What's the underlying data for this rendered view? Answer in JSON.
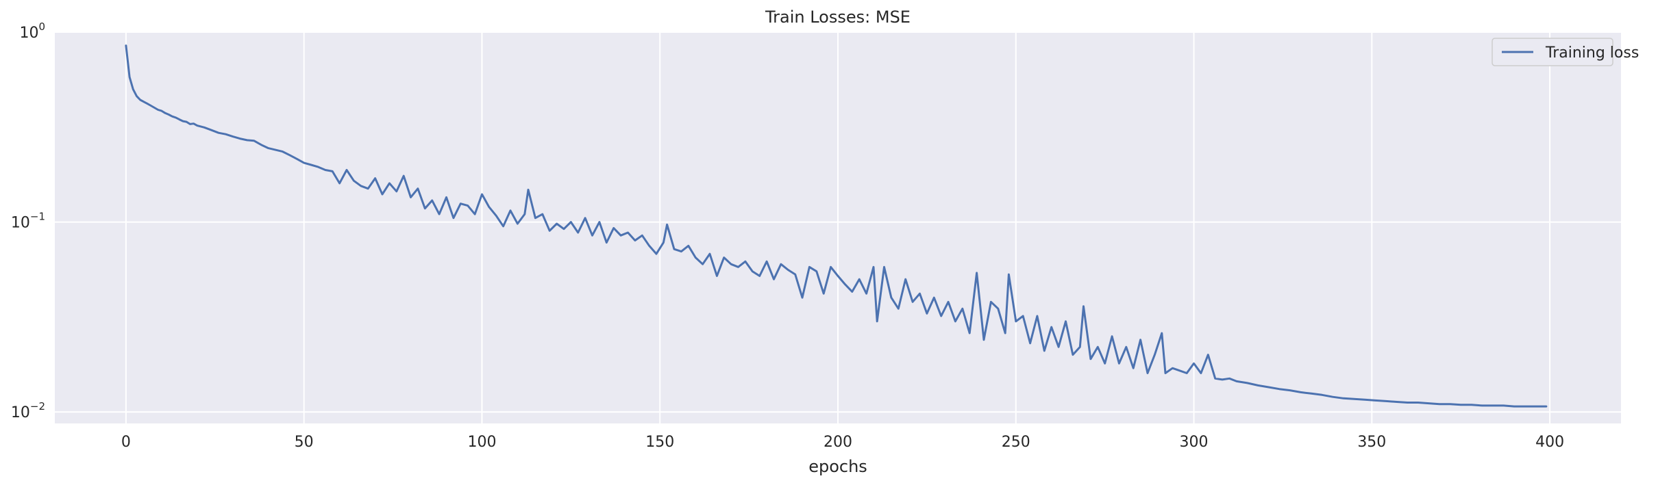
{
  "chart_data": {
    "type": "line",
    "title": "Train Losses:  MSE",
    "xlabel": "epochs",
    "ylabel": "",
    "yscale": "log",
    "xlim": [
      -20,
      420
    ],
    "ylim": [
      0.0087,
      1.0
    ],
    "xticks": [
      0,
      50,
      100,
      150,
      200,
      250,
      300,
      350,
      400
    ],
    "yticks": [
      {
        "value": 1.0,
        "base": "10",
        "exp": "0"
      },
      {
        "value": 0.1,
        "base": "10",
        "exp": "−1"
      },
      {
        "value": 0.01,
        "base": "10",
        "exp": "−2"
      }
    ],
    "grid": true,
    "legend": "top-right",
    "series": [
      {
        "name": "Training loss",
        "color": "#4c72b0",
        "points": [
          [
            0,
            0.85
          ],
          [
            1,
            0.58
          ],
          [
            2,
            0.5
          ],
          [
            3,
            0.46
          ],
          [
            4,
            0.44
          ],
          [
            5,
            0.43
          ],
          [
            6,
            0.42
          ],
          [
            7,
            0.41
          ],
          [
            8,
            0.4
          ],
          [
            9,
            0.39
          ],
          [
            10,
            0.385
          ],
          [
            11,
            0.375
          ],
          [
            12,
            0.368
          ],
          [
            13,
            0.36
          ],
          [
            14,
            0.355
          ],
          [
            15,
            0.347
          ],
          [
            16,
            0.34
          ],
          [
            17,
            0.337
          ],
          [
            18,
            0.328
          ],
          [
            19,
            0.33
          ],
          [
            20,
            0.322
          ],
          [
            22,
            0.315
          ],
          [
            24,
            0.305
          ],
          [
            26,
            0.295
          ],
          [
            28,
            0.29
          ],
          [
            30,
            0.282
          ],
          [
            32,
            0.275
          ],
          [
            34,
            0.27
          ],
          [
            36,
            0.268
          ],
          [
            38,
            0.255
          ],
          [
            40,
            0.245
          ],
          [
            42,
            0.24
          ],
          [
            44,
            0.235
          ],
          [
            46,
            0.225
          ],
          [
            48,
            0.215
          ],
          [
            50,
            0.205
          ],
          [
            52,
            0.2
          ],
          [
            54,
            0.195
          ],
          [
            56,
            0.188
          ],
          [
            58,
            0.185
          ],
          [
            60,
            0.16
          ],
          [
            62,
            0.188
          ],
          [
            64,
            0.165
          ],
          [
            66,
            0.155
          ],
          [
            68,
            0.15
          ],
          [
            70,
            0.17
          ],
          [
            72,
            0.14
          ],
          [
            74,
            0.16
          ],
          [
            76,
            0.145
          ],
          [
            78,
            0.175
          ],
          [
            80,
            0.135
          ],
          [
            82,
            0.15
          ],
          [
            84,
            0.118
          ],
          [
            86,
            0.13
          ],
          [
            88,
            0.11
          ],
          [
            90,
            0.135
          ],
          [
            92,
            0.105
          ],
          [
            94,
            0.125
          ],
          [
            96,
            0.122
          ],
          [
            98,
            0.11
          ],
          [
            100,
            0.14
          ],
          [
            102,
            0.12
          ],
          [
            104,
            0.108
          ],
          [
            106,
            0.095
          ],
          [
            108,
            0.115
          ],
          [
            110,
            0.098
          ],
          [
            112,
            0.11
          ],
          [
            113,
            0.148
          ],
          [
            115,
            0.105
          ],
          [
            117,
            0.11
          ],
          [
            119,
            0.09
          ],
          [
            121,
            0.098
          ],
          [
            123,
            0.092
          ],
          [
            125,
            0.1
          ],
          [
            127,
            0.088
          ],
          [
            129,
            0.105
          ],
          [
            131,
            0.085
          ],
          [
            133,
            0.1
          ],
          [
            135,
            0.078
          ],
          [
            137,
            0.093
          ],
          [
            139,
            0.085
          ],
          [
            141,
            0.088
          ],
          [
            143,
            0.08
          ],
          [
            145,
            0.085
          ],
          [
            147,
            0.075
          ],
          [
            149,
            0.068
          ],
          [
            151,
            0.078
          ],
          [
            152,
            0.097
          ],
          [
            154,
            0.072
          ],
          [
            156,
            0.07
          ],
          [
            158,
            0.075
          ],
          [
            160,
            0.065
          ],
          [
            162,
            0.06
          ],
          [
            164,
            0.068
          ],
          [
            166,
            0.052
          ],
          [
            168,
            0.065
          ],
          [
            170,
            0.06
          ],
          [
            172,
            0.058
          ],
          [
            174,
            0.062
          ],
          [
            176,
            0.055
          ],
          [
            178,
            0.052
          ],
          [
            180,
            0.062
          ],
          [
            182,
            0.05
          ],
          [
            184,
            0.06
          ],
          [
            186,
            0.056
          ],
          [
            188,
            0.053
          ],
          [
            190,
            0.04
          ],
          [
            192,
            0.058
          ],
          [
            194,
            0.055
          ],
          [
            196,
            0.042
          ],
          [
            198,
            0.058
          ],
          [
            200,
            0.052
          ],
          [
            202,
            0.047
          ],
          [
            204,
            0.043
          ],
          [
            206,
            0.05
          ],
          [
            208,
            0.042
          ],
          [
            210,
            0.058
          ],
          [
            211,
            0.03
          ],
          [
            213,
            0.058
          ],
          [
            215,
            0.04
          ],
          [
            217,
            0.035
          ],
          [
            219,
            0.05
          ],
          [
            221,
            0.038
          ],
          [
            223,
            0.042
          ],
          [
            225,
            0.033
          ],
          [
            227,
            0.04
          ],
          [
            229,
            0.032
          ],
          [
            231,
            0.038
          ],
          [
            233,
            0.03
          ],
          [
            235,
            0.035
          ],
          [
            237,
            0.026
          ],
          [
            239,
            0.054
          ],
          [
            241,
            0.024
          ],
          [
            243,
            0.038
          ],
          [
            245,
            0.035
          ],
          [
            247,
            0.026
          ],
          [
            248,
            0.053
          ],
          [
            250,
            0.03
          ],
          [
            252,
            0.032
          ],
          [
            254,
            0.023
          ],
          [
            256,
            0.032
          ],
          [
            258,
            0.021
          ],
          [
            260,
            0.028
          ],
          [
            262,
            0.022
          ],
          [
            264,
            0.03
          ],
          [
            266,
            0.02
          ],
          [
            268,
            0.022
          ],
          [
            269,
            0.036
          ],
          [
            271,
            0.019
          ],
          [
            273,
            0.022
          ],
          [
            275,
            0.018
          ],
          [
            277,
            0.025
          ],
          [
            279,
            0.018
          ],
          [
            281,
            0.022
          ],
          [
            283,
            0.017
          ],
          [
            285,
            0.024
          ],
          [
            287,
            0.016
          ],
          [
            289,
            0.02
          ],
          [
            291,
            0.026
          ],
          [
            292,
            0.016
          ],
          [
            294,
            0.017
          ],
          [
            296,
            0.0165
          ],
          [
            298,
            0.016
          ],
          [
            300,
            0.018
          ],
          [
            302,
            0.016
          ],
          [
            304,
            0.02
          ],
          [
            306,
            0.015
          ],
          [
            308,
            0.0148
          ],
          [
            310,
            0.015
          ],
          [
            312,
            0.0145
          ],
          [
            315,
            0.0142
          ],
          [
            318,
            0.0138
          ],
          [
            321,
            0.0135
          ],
          [
            324,
            0.0132
          ],
          [
            327,
            0.013
          ],
          [
            330,
            0.0127
          ],
          [
            333,
            0.0125
          ],
          [
            336,
            0.0123
          ],
          [
            339,
            0.012
          ],
          [
            342,
            0.0118
          ],
          [
            345,
            0.0117
          ],
          [
            348,
            0.0116
          ],
          [
            351,
            0.0115
          ],
          [
            354,
            0.0114
          ],
          [
            357,
            0.0113
          ],
          [
            360,
            0.0112
          ],
          [
            363,
            0.0112
          ],
          [
            366,
            0.0111
          ],
          [
            369,
            0.011
          ],
          [
            372,
            0.011
          ],
          [
            375,
            0.0109
          ],
          [
            378,
            0.0109
          ],
          [
            381,
            0.0108
          ],
          [
            384,
            0.0108
          ],
          [
            387,
            0.0108
          ],
          [
            390,
            0.0107
          ],
          [
            393,
            0.0107
          ],
          [
            396,
            0.0107
          ],
          [
            399,
            0.0107
          ]
        ]
      }
    ]
  }
}
